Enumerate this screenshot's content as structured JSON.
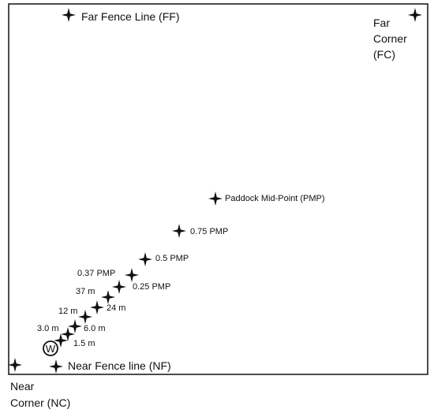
{
  "colors": {
    "ink": "#111111",
    "background": "#ffffff"
  },
  "marker_icon": "four-point-star-icon",
  "water_symbol": {
    "letter": "W"
  },
  "landmarks": {
    "far_fence": "Far Fence Line (FF)",
    "far_corner": [
      "Far",
      "Corner",
      "(FC)"
    ],
    "near_fence": "Near Fence line (NF)",
    "near_corner": [
      "Near",
      "Corner (NC)"
    ],
    "paddock_mid_point": "Paddock Mid-Point (PMP)"
  },
  "sample_points": [
    {
      "label": "1.5 m"
    },
    {
      "label": "3.0 m"
    },
    {
      "label": "6.0 m"
    },
    {
      "label": "12 m"
    },
    {
      "label": "24 m"
    },
    {
      "label": "37 m"
    },
    {
      "label": "0.25 PMP"
    },
    {
      "label": "0.37 PMP"
    },
    {
      "label": "0.5 PMP"
    },
    {
      "label": "0.75 PMP"
    }
  ]
}
